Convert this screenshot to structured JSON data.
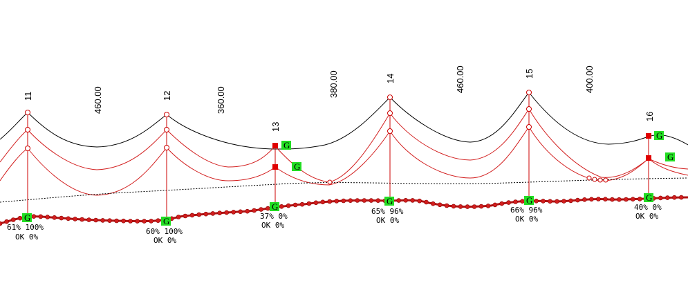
{
  "colors": {
    "background": "#ffffff",
    "conductor_black": "#000000",
    "conductor_red": "#d21e1e",
    "tower": "#cc0000",
    "ground_marker": "#d21e1e",
    "g_marker": "#22dd22"
  },
  "spans": [
    {
      "label": "460.00"
    },
    {
      "label": "360.00"
    },
    {
      "label": "380.00"
    },
    {
      "label": "460.00"
    },
    {
      "label": "400.00"
    }
  ],
  "towers": [
    {
      "label": "11",
      "stats": "61% 100%",
      "status": "OK  0%"
    },
    {
      "label": "12",
      "stats": "60% 100%",
      "status": "OK  0%"
    },
    {
      "label": "13",
      "stats": "37%  0%",
      "status": "OK  0%"
    },
    {
      "label": "14",
      "stats": "65% 96%",
      "status": "OK  0%"
    },
    {
      "label": "15",
      "stats": "66% 96%",
      "status": "OK  0%"
    },
    {
      "label": "16",
      "stats": "40%  0%",
      "status": "OK  0%"
    }
  ],
  "markers": {
    "ground_symbol": "G"
  }
}
